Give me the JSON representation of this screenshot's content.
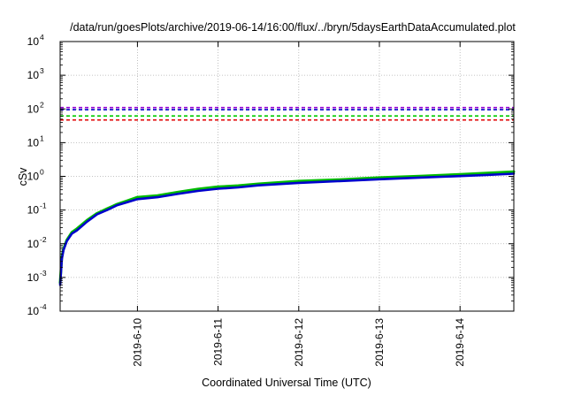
{
  "chart_data": {
    "type": "line",
    "title": "/data/run/goesPlots/archive/2019-06-14/16:00/flux/../bryn/5daysEarthDataAccumulated.plot",
    "xlabel": "Coordinated Universal Time (UTC)",
    "ylabel": "cSv",
    "yscale": "log",
    "ylim": [
      0.0001,
      10000
    ],
    "y_ticks": [
      {
        "base": "10",
        "exp": "-4",
        "value": 0.0001
      },
      {
        "base": "10",
        "exp": "-3",
        "value": 0.001
      },
      {
        "base": "10",
        "exp": "-2",
        "value": 0.01
      },
      {
        "base": "10",
        "exp": "-1",
        "value": 0.1
      },
      {
        "base": "10",
        "exp": "0",
        "value": 1
      },
      {
        "base": "10",
        "exp": "1",
        "value": 10
      },
      {
        "base": "10",
        "exp": "2",
        "value": 100
      },
      {
        "base": "10",
        "exp": "3",
        "value": 1000
      },
      {
        "base": "10",
        "exp": "4",
        "value": 10000
      }
    ],
    "xlim": [
      "2019-06-09T01:00",
      "2019-06-14T16:00"
    ],
    "x_ticks": [
      {
        "label": "2019-6-10",
        "date": "2019-06-10T00:00"
      },
      {
        "label": "2019-6-11",
        "date": "2019-06-11T00:00"
      },
      {
        "label": "2019-6-12",
        "date": "2019-06-12T00:00"
      },
      {
        "label": "2019-6-13",
        "date": "2019-06-13T00:00"
      },
      {
        "label": "2019-6-14",
        "date": "2019-06-14T00:00"
      }
    ],
    "grid": true,
    "legend": "none",
    "thresholds": [
      {
        "value": 110,
        "color": "#9400d3"
      },
      {
        "value": 95,
        "color": "#0000cc"
      },
      {
        "value": 62,
        "color": "#00cc00"
      },
      {
        "value": 47,
        "color": "#e00000"
      }
    ],
    "series": [
      {
        "color": "#00bb00",
        "x": [
          "2019-06-09T01:00",
          "2019-06-09T01:30",
          "2019-06-09T02:00",
          "2019-06-09T03:00",
          "2019-06-09T04:30",
          "2019-06-09T06:00",
          "2019-06-09T09:00",
          "2019-06-09T12:00",
          "2019-06-09T15:00",
          "2019-06-09T18:00",
          "2019-06-09T21:00",
          "2019-06-10T00:00",
          "2019-06-10T06:00",
          "2019-06-10T12:00",
          "2019-06-10T18:00",
          "2019-06-11T00:00",
          "2019-06-11T06:00",
          "2019-06-11T12:00",
          "2019-06-12T00:00",
          "2019-06-12T12:00",
          "2019-06-13T00:00",
          "2019-06-13T12:00",
          "2019-06-14T00:00",
          "2019-06-14T08:00",
          "2019-06-14T16:00"
        ],
        "values": [
          0.0007,
          0.004,
          0.007,
          0.013,
          0.022,
          0.028,
          0.05,
          0.08,
          0.11,
          0.15,
          0.19,
          0.24,
          0.27,
          0.34,
          0.42,
          0.49,
          0.53,
          0.6,
          0.72,
          0.8,
          0.92,
          1.02,
          1.15,
          1.25,
          1.38
        ]
      },
      {
        "color": "#0000cc",
        "x": [
          "2019-06-09T01:00",
          "2019-06-09T01:30",
          "2019-06-09T02:00",
          "2019-06-09T03:00",
          "2019-06-09T04:30",
          "2019-06-09T06:00",
          "2019-06-09T09:00",
          "2019-06-09T12:00",
          "2019-06-09T15:00",
          "2019-06-09T18:00",
          "2019-06-09T21:00",
          "2019-06-10T00:00",
          "2019-06-10T06:00",
          "2019-06-10T12:00",
          "2019-06-10T18:00",
          "2019-06-11T00:00",
          "2019-06-11T06:00",
          "2019-06-11T12:00",
          "2019-06-12T00:00",
          "2019-06-12T12:00",
          "2019-06-13T00:00",
          "2019-06-13T12:00",
          "2019-06-14T00:00",
          "2019-06-14T08:00",
          "2019-06-14T16:00"
        ],
        "values": [
          0.0006,
          0.0035,
          0.0065,
          0.012,
          0.02,
          0.025,
          0.045,
          0.075,
          0.1,
          0.14,
          0.17,
          0.21,
          0.24,
          0.3,
          0.37,
          0.43,
          0.47,
          0.54,
          0.64,
          0.72,
          0.82,
          0.92,
          1.02,
          1.1,
          1.2
        ]
      }
    ]
  }
}
